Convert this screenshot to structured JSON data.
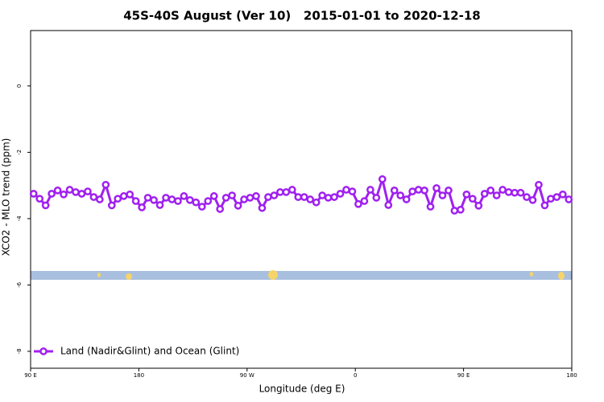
{
  "chart_data": {
    "type": "line",
    "title": "45S-40S August (Ver 10)   2015-01-01 to 2020-12-18",
    "x_label": "Longitude (deg E)",
    "y_label": "XCO2 - MLO trend (ppm)",
    "xlim": [
      90,
      540
    ],
    "xticks": [
      {
        "value": 90,
        "label": "90 E"
      },
      {
        "value": 180,
        "label": "180"
      },
      {
        "value": 270,
        "label": "90 W"
      },
      {
        "value": 360,
        "label": "0"
      },
      {
        "value": 450,
        "label": "90 E"
      },
      {
        "value": 540,
        "label": "180"
      }
    ],
    "ylim": [
      -8.51,
      1.67
    ],
    "yticks": [
      0,
      -2,
      -4,
      -6,
      -8
    ],
    "x": [
      92.5,
      97.5,
      102.5,
      107.5,
      112.5,
      117.5,
      122.5,
      127.5,
      132.5,
      137.5,
      142.5,
      147.5,
      152.5,
      157.5,
      162.5,
      167.5,
      172.5,
      177.5,
      182.5,
      187.5,
      192.5,
      197.5,
      202.5,
      207.5,
      212.5,
      217.5,
      222.5,
      227.5,
      232.5,
      237.5,
      242.5,
      247.5,
      252.5,
      257.5,
      262.5,
      267.5,
      272.5,
      277.5,
      282.5,
      287.5,
      292.5,
      297.5,
      302.5,
      307.5,
      312.5,
      317.5,
      322.5,
      327.5,
      332.5,
      337.5,
      342.5,
      347.5,
      352.5,
      357.5,
      362.5,
      367.5,
      372.5,
      377.5,
      382.5,
      387.5,
      392.5,
      397.5,
      402.5,
      407.5,
      412.5,
      417.5,
      422.5,
      427.5,
      432.5,
      437.5,
      442.5,
      447.5,
      452.5,
      457.5,
      462.5,
      467.5,
      472.5,
      477.5,
      482.5,
      487.5,
      492.5,
      497.5,
      502.5,
      507.5,
      512.5,
      517.5,
      522.5,
      527.5,
      532.5,
      537.5
    ],
    "series": [
      {
        "name": "Land (Nadir&Glint) and Ocean (Glint)",
        "color": "#a020f0",
        "values": [
          -3.25,
          -3.4,
          -3.6,
          -3.25,
          -3.15,
          -3.27,
          -3.13,
          -3.2,
          -3.25,
          -3.18,
          -3.35,
          -3.42,
          -2.98,
          -3.6,
          -3.4,
          -3.32,
          -3.27,
          -3.47,
          -3.66,
          -3.37,
          -3.44,
          -3.59,
          -3.37,
          -3.42,
          -3.47,
          -3.32,
          -3.44,
          -3.51,
          -3.64,
          -3.47,
          -3.32,
          -3.71,
          -3.37,
          -3.3,
          -3.61,
          -3.42,
          -3.37,
          -3.32,
          -3.68,
          -3.35,
          -3.3,
          -3.2,
          -3.2,
          -3.13,
          -3.35,
          -3.35,
          -3.42,
          -3.51,
          -3.3,
          -3.37,
          -3.35,
          -3.25,
          -3.13,
          -3.18,
          -3.56,
          -3.47,
          -3.13,
          -3.37,
          -2.81,
          -3.59,
          -3.15,
          -3.3,
          -3.42,
          -3.18,
          -3.13,
          -3.15,
          -3.64,
          -3.08,
          -3.3,
          -3.15,
          -3.76,
          -3.73,
          -3.27,
          -3.4,
          -3.61,
          -3.25,
          -3.15,
          -3.3,
          -3.13,
          -3.2,
          -3.22,
          -3.22,
          -3.35,
          -3.44,
          -2.98,
          -3.6,
          -3.4,
          -3.35,
          -3.27,
          -3.42
        ]
      }
    ]
  }
}
